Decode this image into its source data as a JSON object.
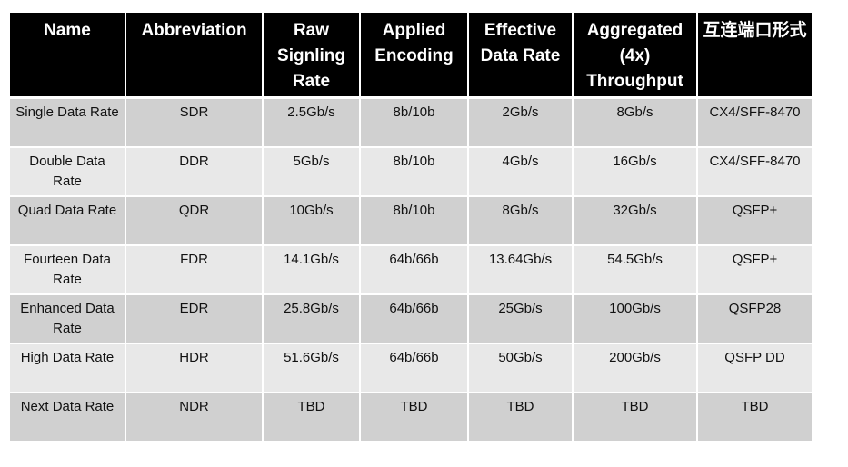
{
  "table": {
    "headers": [
      "Name",
      "Abbreviation",
      "Raw Signling Rate",
      "Applied Encoding",
      "Effective Data Rate",
      "Aggregated (4x) Throughput",
      "互连端口形式"
    ],
    "rows": [
      [
        "Single Data Rate",
        "SDR",
        "2.5Gb/s",
        "8b/10b",
        "2Gb/s",
        "8Gb/s",
        "CX4/SFF-8470"
      ],
      [
        "Double Data Rate",
        "DDR",
        "5Gb/s",
        "8b/10b",
        "4Gb/s",
        "16Gb/s",
        "CX4/SFF-8470"
      ],
      [
        "Quad Data Rate",
        "QDR",
        "10Gb/s",
        "8b/10b",
        "8Gb/s",
        "32Gb/s",
        "QSFP+"
      ],
      [
        "Fourteen Data Rate",
        "FDR",
        "14.1Gb/s",
        "64b/66b",
        "13.64Gb/s",
        "54.5Gb/s",
        "QSFP+"
      ],
      [
        "Enhanced Data Rate",
        "EDR",
        "25.8Gb/s",
        "64b/66b",
        "25Gb/s",
        "100Gb/s",
        "QSFP28"
      ],
      [
        "High Data Rate",
        "HDR",
        "51.6Gb/s",
        "64b/66b",
        "50Gb/s",
        "200Gb/s",
        "QSFP DD"
      ],
      [
        "Next Data Rate",
        "NDR",
        "TBD",
        "TBD",
        "TBD",
        "TBD",
        "TBD"
      ]
    ]
  },
  "colors": {
    "header_bg": "#000000",
    "header_text": "#ffffff",
    "row_dark": "#d0d0d0",
    "row_light": "#e8e8e8"
  }
}
